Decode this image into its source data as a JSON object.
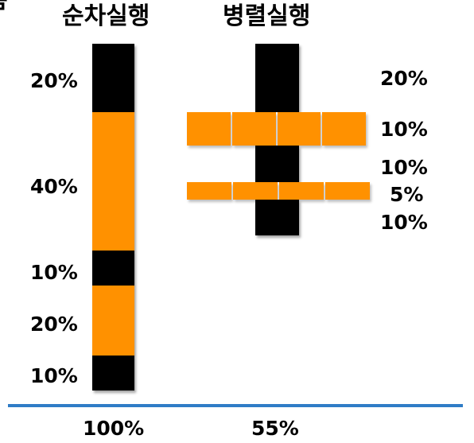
{
  "titles": {
    "sequential": "순차실행",
    "parallel": "병렬실행"
  },
  "colors": {
    "cpu": "#000000",
    "io": "#ff9100",
    "baseline": "#2f7cc6",
    "divider": "#ffffff"
  },
  "sequential": {
    "segments": [
      {
        "kind": "cpu",
        "label": "20%",
        "share": 20
      },
      {
        "kind": "io",
        "label": "40%",
        "share": 40
      },
      {
        "kind": "cpu",
        "label": "10%",
        "share": 10
      },
      {
        "kind": "io",
        "label": "20%",
        "share": 20
      },
      {
        "kind": "cpu",
        "label": "10%",
        "share": 10
      }
    ],
    "total": "100%"
  },
  "parallel": {
    "segments": [
      {
        "kind": "cpu",
        "label": "20%",
        "share": 20
      },
      {
        "kind": "io",
        "label": "10%",
        "share": 10,
        "parts": 4
      },
      {
        "kind": "cpu",
        "label": "10%",
        "share": 10
      },
      {
        "kind": "io",
        "label": "5%",
        "share": 5,
        "parts": 4
      },
      {
        "kind": "cpu",
        "label": "10%",
        "share": 10
      }
    ],
    "total": "55%"
  },
  "corner_glyph": "름"
}
